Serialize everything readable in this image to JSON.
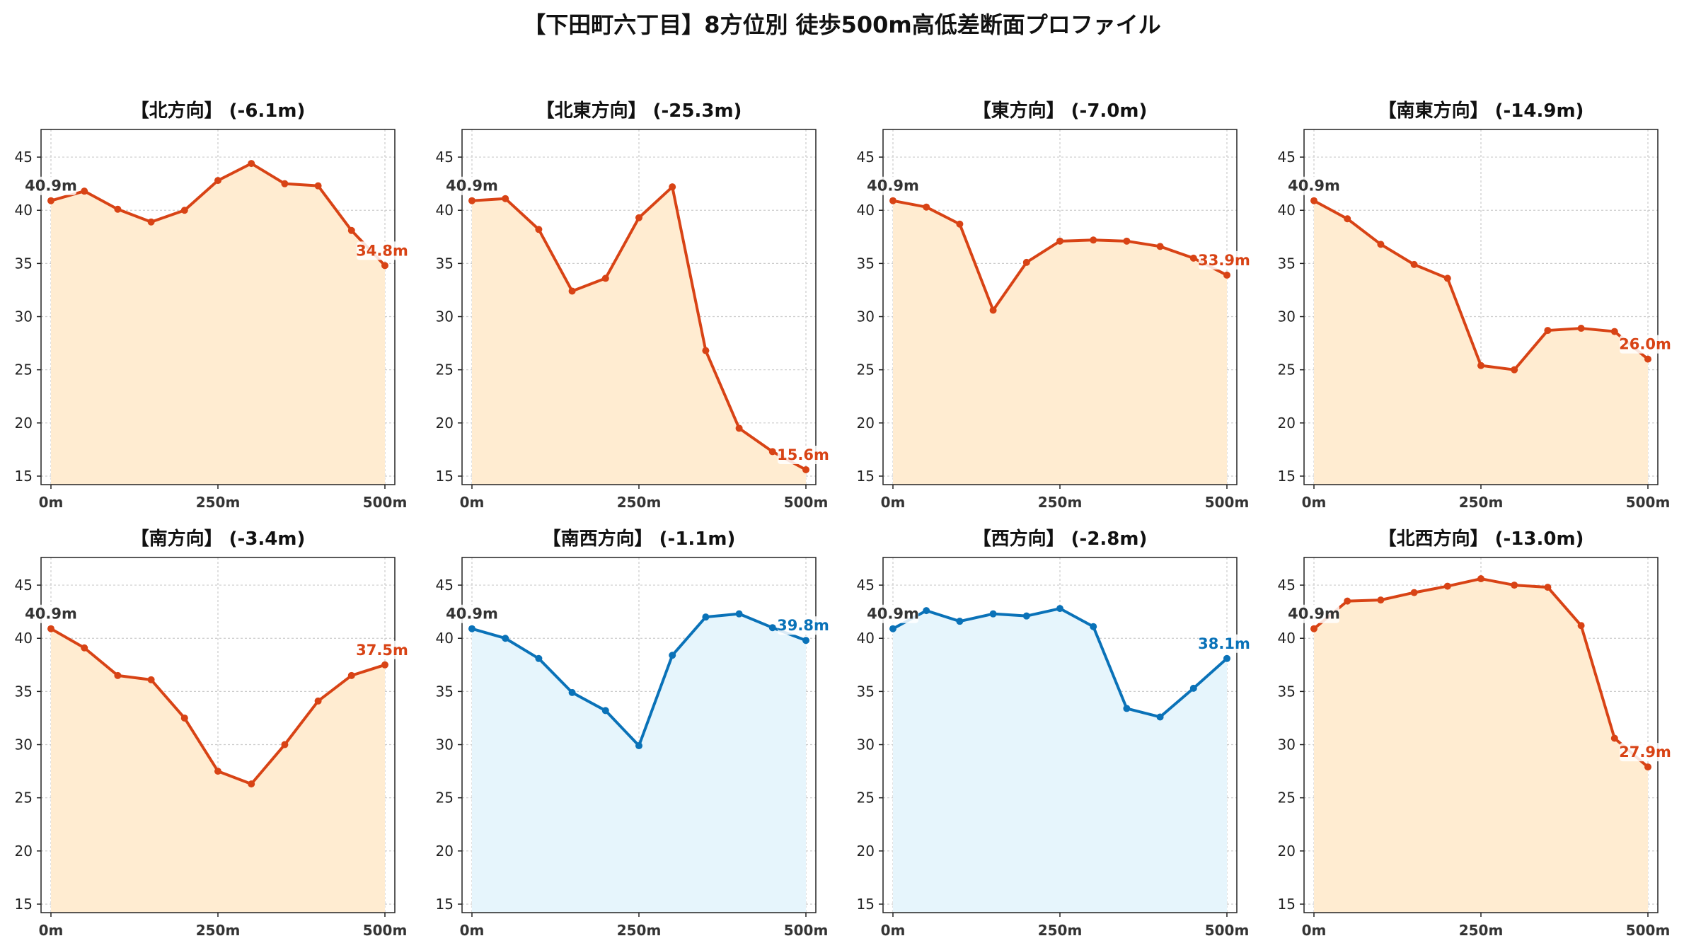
{
  "title": "【下田町六丁目】8方位別 徒歩500m高低差断面プロファイル",
  "colors": {
    "down_line": "#d84315",
    "down_fill": "#ffecd1",
    "up_line": "#0a72b8",
    "up_fill": "#e6f5fc",
    "start_label": "#333333"
  },
  "chart_data": [
    {
      "type": "area",
      "title": "【北方向】 (-6.1m)",
      "trend": "down",
      "x": [
        0,
        50,
        100,
        150,
        200,
        250,
        300,
        350,
        400,
        450,
        500
      ],
      "values": [
        40.9,
        41.8,
        40.1,
        38.9,
        40.0,
        42.8,
        44.4,
        42.5,
        42.3,
        38.1,
        34.8
      ],
      "start_label": "40.9m",
      "end_label": "34.8m",
      "ylim": [
        14.2,
        47.6
      ],
      "yticks": [
        15,
        20,
        25,
        30,
        35,
        40,
        45
      ],
      "xticks": [
        0,
        250,
        500
      ],
      "xtick_labels": [
        "0m",
        "250m",
        "500m"
      ],
      "grid": true
    },
    {
      "type": "area",
      "title": "【北東方向】 (-25.3m)",
      "trend": "down",
      "x": [
        0,
        50,
        100,
        150,
        200,
        250,
        300,
        350,
        400,
        450,
        500
      ],
      "values": [
        40.9,
        41.1,
        38.2,
        32.4,
        33.6,
        39.3,
        42.2,
        26.8,
        19.5,
        17.3,
        15.6
      ],
      "start_label": "40.9m",
      "end_label": "15.6m",
      "ylim": [
        14.2,
        47.6
      ],
      "yticks": [
        15,
        20,
        25,
        30,
        35,
        40,
        45
      ],
      "xticks": [
        0,
        250,
        500
      ],
      "xtick_labels": [
        "0m",
        "250m",
        "500m"
      ],
      "grid": true
    },
    {
      "type": "area",
      "title": "【東方向】 (-7.0m)",
      "trend": "down",
      "x": [
        0,
        50,
        100,
        150,
        200,
        250,
        300,
        350,
        400,
        450,
        500
      ],
      "values": [
        40.9,
        40.3,
        38.7,
        30.6,
        35.1,
        37.1,
        37.2,
        37.1,
        36.6,
        35.5,
        33.9
      ],
      "start_label": "40.9m",
      "end_label": "33.9m",
      "ylim": [
        14.2,
        47.6
      ],
      "yticks": [
        15,
        20,
        25,
        30,
        35,
        40,
        45
      ],
      "xticks": [
        0,
        250,
        500
      ],
      "xtick_labels": [
        "0m",
        "250m",
        "500m"
      ],
      "grid": true
    },
    {
      "type": "area",
      "title": "【南東方向】 (-14.9m)",
      "trend": "down",
      "x": [
        0,
        50,
        100,
        150,
        200,
        250,
        300,
        350,
        400,
        450,
        500
      ],
      "values": [
        40.9,
        39.2,
        36.8,
        34.9,
        33.6,
        25.4,
        25.0,
        28.7,
        28.9,
        28.6,
        26.0
      ],
      "start_label": "40.9m",
      "end_label": "26.0m",
      "ylim": [
        14.2,
        47.6
      ],
      "yticks": [
        15,
        20,
        25,
        30,
        35,
        40,
        45
      ],
      "xticks": [
        0,
        250,
        500
      ],
      "xtick_labels": [
        "0m",
        "250m",
        "500m"
      ],
      "grid": true
    },
    {
      "type": "area",
      "title": "【南方向】 (-3.4m)",
      "trend": "down",
      "x": [
        0,
        50,
        100,
        150,
        200,
        250,
        300,
        350,
        400,
        450,
        500
      ],
      "values": [
        40.9,
        39.1,
        36.5,
        36.1,
        32.5,
        27.5,
        26.3,
        30.0,
        34.1,
        36.5,
        37.5
      ],
      "start_label": "40.9m",
      "end_label": "37.5m",
      "ylim": [
        14.2,
        47.6
      ],
      "yticks": [
        15,
        20,
        25,
        30,
        35,
        40,
        45
      ],
      "xticks": [
        0,
        250,
        500
      ],
      "xtick_labels": [
        "0m",
        "250m",
        "500m"
      ],
      "grid": true
    },
    {
      "type": "area",
      "title": "【南西方向】 (-1.1m)",
      "trend": "up",
      "x": [
        0,
        50,
        100,
        150,
        200,
        250,
        300,
        350,
        400,
        450,
        500
      ],
      "values": [
        40.9,
        40.0,
        38.1,
        34.9,
        33.2,
        29.9,
        38.4,
        42.0,
        42.3,
        41.0,
        39.8
      ],
      "start_label": "40.9m",
      "end_label": "39.8m",
      "ylim": [
        14.2,
        47.6
      ],
      "yticks": [
        15,
        20,
        25,
        30,
        35,
        40,
        45
      ],
      "xticks": [
        0,
        250,
        500
      ],
      "xtick_labels": [
        "0m",
        "250m",
        "500m"
      ],
      "grid": true
    },
    {
      "type": "area",
      "title": "【西方向】 (-2.8m)",
      "trend": "up",
      "x": [
        0,
        50,
        100,
        150,
        200,
        250,
        300,
        350,
        400,
        450,
        500
      ],
      "values": [
        40.9,
        42.6,
        41.6,
        42.3,
        42.1,
        42.8,
        41.1,
        33.4,
        32.6,
        35.3,
        38.1
      ],
      "start_label": "40.9m",
      "end_label": "38.1m",
      "ylim": [
        14.2,
        47.6
      ],
      "yticks": [
        15,
        20,
        25,
        30,
        35,
        40,
        45
      ],
      "xticks": [
        0,
        250,
        500
      ],
      "xtick_labels": [
        "0m",
        "250m",
        "500m"
      ],
      "grid": true
    },
    {
      "type": "area",
      "title": "【北西方向】 (-13.0m)",
      "trend": "down",
      "x": [
        0,
        50,
        100,
        150,
        200,
        250,
        300,
        350,
        400,
        450,
        500
      ],
      "values": [
        40.9,
        43.5,
        43.6,
        44.3,
        44.9,
        45.6,
        45.0,
        44.8,
        41.2,
        30.6,
        27.9
      ],
      "start_label": "40.9m",
      "end_label": "27.9m",
      "ylim": [
        14.2,
        47.6
      ],
      "yticks": [
        15,
        20,
        25,
        30,
        35,
        40,
        45
      ],
      "xticks": [
        0,
        250,
        500
      ],
      "xtick_labels": [
        "0m",
        "250m",
        "500m"
      ],
      "grid": true
    }
  ]
}
